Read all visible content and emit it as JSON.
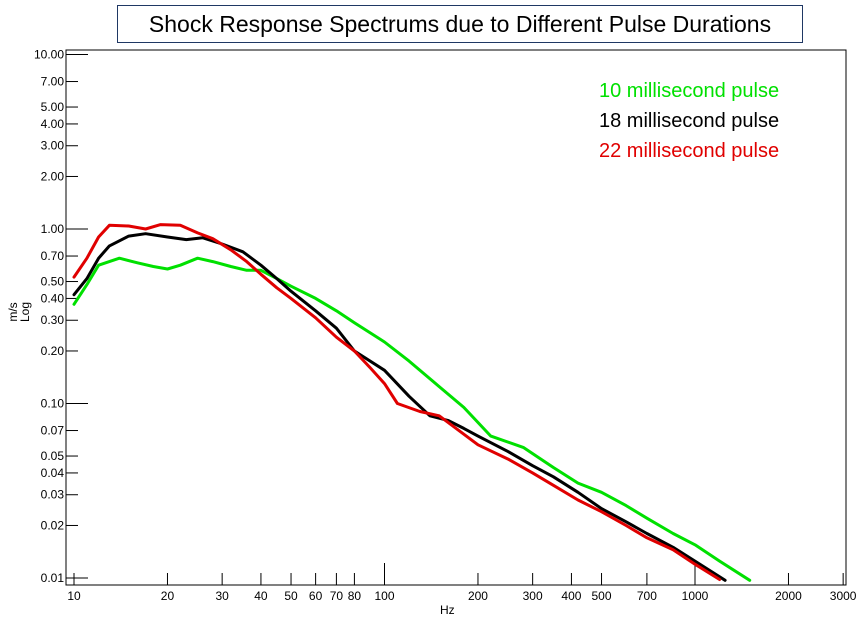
{
  "chart_data": {
    "type": "line",
    "title": "Shock Response Spectrums due to Different Pulse Durations",
    "xlabel": "Hz",
    "ylabel": "m/s",
    "yscale_label": "Log",
    "xscale": "log",
    "yscale": "log",
    "xlim": [
      10,
      3000
    ],
    "ylim": [
      0.01,
      10
    ],
    "x_ticks": [
      10,
      20,
      30,
      40,
      50,
      60,
      70,
      80,
      100,
      200,
      300,
      400,
      500,
      700,
      1000,
      2000,
      3000
    ],
    "x_tick_labels": [
      "10",
      "20",
      "30",
      "40",
      "50",
      "60",
      "70",
      "80",
      "100",
      "200",
      "300",
      "400",
      "500",
      "700",
      "1000",
      "2000",
      "3000"
    ],
    "y_ticks": [
      10,
      7,
      5,
      4,
      3,
      2,
      1,
      0.7,
      0.5,
      0.4,
      0.3,
      0.2,
      0.1,
      0.07,
      0.05,
      0.04,
      0.03,
      0.02,
      0.01
    ],
    "y_tick_labels": [
      "10.00",
      "7.00",
      "5.00",
      "4.00",
      "3.00",
      "2.00",
      "1.00",
      "0.70",
      "0.50",
      "0.40",
      "0.30",
      "0.20",
      "0.10",
      "0.07",
      "0.05",
      "0.04",
      "0.03",
      "0.02",
      "0.01"
    ],
    "legend_position": "top-right",
    "series": [
      {
        "name": "10 millisecond pulse",
        "color": "#00e000",
        "points": [
          [
            10,
            0.37
          ],
          [
            11,
            0.48
          ],
          [
            12,
            0.62
          ],
          [
            14,
            0.68
          ],
          [
            16,
            0.64
          ],
          [
            18,
            0.61
          ],
          [
            20,
            0.59
          ],
          [
            22,
            0.62
          ],
          [
            25,
            0.68
          ],
          [
            28,
            0.65
          ],
          [
            32,
            0.61
          ],
          [
            36,
            0.58
          ],
          [
            40,
            0.58
          ],
          [
            45,
            0.52
          ],
          [
            50,
            0.47
          ],
          [
            60,
            0.4
          ],
          [
            70,
            0.34
          ],
          [
            80,
            0.29
          ],
          [
            100,
            0.225
          ],
          [
            120,
            0.175
          ],
          [
            150,
            0.125
          ],
          [
            180,
            0.095
          ],
          [
            220,
            0.065
          ],
          [
            280,
            0.056
          ],
          [
            350,
            0.043
          ],
          [
            420,
            0.035
          ],
          [
            500,
            0.031
          ],
          [
            600,
            0.026
          ],
          [
            700,
            0.022
          ],
          [
            850,
            0.018
          ],
          [
            1000,
            0.0155
          ],
          [
            1200,
            0.0125
          ],
          [
            1500,
            0.0097
          ]
        ]
      },
      {
        "name": "18 millisecond pulse",
        "color": "#000000",
        "points": [
          [
            10,
            0.42
          ],
          [
            11,
            0.52
          ],
          [
            12,
            0.68
          ],
          [
            13,
            0.8
          ],
          [
            15,
            0.91
          ],
          [
            17,
            0.94
          ],
          [
            20,
            0.9
          ],
          [
            23,
            0.87
          ],
          [
            26,
            0.89
          ],
          [
            30,
            0.82
          ],
          [
            35,
            0.74
          ],
          [
            40,
            0.62
          ],
          [
            45,
            0.52
          ],
          [
            50,
            0.44
          ],
          [
            60,
            0.34
          ],
          [
            70,
            0.27
          ],
          [
            80,
            0.2
          ],
          [
            100,
            0.155
          ],
          [
            120,
            0.11
          ],
          [
            140,
            0.085
          ],
          [
            160,
            0.08
          ],
          [
            180,
            0.072
          ],
          [
            200,
            0.065
          ],
          [
            250,
            0.053
          ],
          [
            300,
            0.044
          ],
          [
            350,
            0.038
          ],
          [
            420,
            0.031
          ],
          [
            500,
            0.025
          ],
          [
            600,
            0.021
          ],
          [
            700,
            0.018
          ],
          [
            850,
            0.015
          ],
          [
            1000,
            0.0125
          ],
          [
            1250,
            0.0097
          ]
        ]
      },
      {
        "name": "22 millisecond pulse",
        "color": "#e00000",
        "points": [
          [
            10,
            0.53
          ],
          [
            11,
            0.68
          ],
          [
            12,
            0.9
          ],
          [
            13,
            1.05
          ],
          [
            15,
            1.04
          ],
          [
            17,
            1.0
          ],
          [
            19,
            1.06
          ],
          [
            22,
            1.05
          ],
          [
            25,
            0.95
          ],
          [
            28,
            0.88
          ],
          [
            32,
            0.76
          ],
          [
            36,
            0.65
          ],
          [
            40,
            0.55
          ],
          [
            45,
            0.46
          ],
          [
            50,
            0.4
          ],
          [
            60,
            0.31
          ],
          [
            70,
            0.24
          ],
          [
            80,
            0.2
          ],
          [
            90,
            0.16
          ],
          [
            100,
            0.13
          ],
          [
            110,
            0.1
          ],
          [
            130,
            0.09
          ],
          [
            150,
            0.085
          ],
          [
            170,
            0.072
          ],
          [
            200,
            0.058
          ],
          [
            250,
            0.048
          ],
          [
            300,
            0.04
          ],
          [
            350,
            0.034
          ],
          [
            420,
            0.028
          ],
          [
            500,
            0.024
          ],
          [
            600,
            0.02
          ],
          [
            700,
            0.017
          ],
          [
            850,
            0.0145
          ],
          [
            1000,
            0.012
          ],
          [
            1200,
            0.0098
          ]
        ]
      }
    ]
  }
}
